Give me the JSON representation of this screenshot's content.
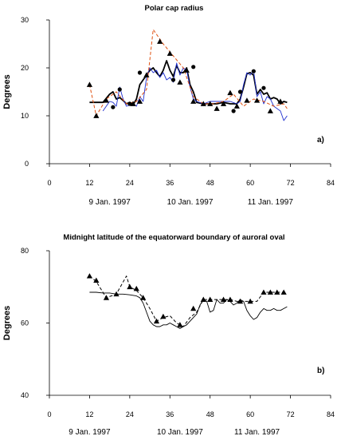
{
  "chart_data": [
    {
      "type": "line",
      "title": "Polar cap radius",
      "xlabel": "",
      "ylabel": "Degrees",
      "xlim": [
        0,
        84
      ],
      "ylim": [
        0,
        30
      ],
      "x_ticks": [
        "0",
        "12",
        "24",
        "36",
        "48",
        "60",
        "72",
        "84"
      ],
      "y_ticks": [
        "0",
        "10",
        "20",
        "30"
      ],
      "date_labels": [
        {
          "text": "9 Jan. 1997",
          "x": 18
        },
        {
          "text": "10 Jan. 1997",
          "x": 42
        },
        {
          "text": "11 Jan. 1997",
          "x": 66
        }
      ],
      "panel_label": "a)",
      "grid": false,
      "series": [
        {
          "style": "solid-thick",
          "color": "#000000",
          "x": [
            12,
            16,
            18,
            19,
            20,
            21,
            22,
            23,
            24,
            25,
            26,
            27,
            28,
            29,
            30,
            31,
            32,
            33,
            34,
            35,
            36,
            37,
            38,
            39,
            40,
            41,
            42,
            43,
            44,
            46,
            48,
            50,
            52,
            54,
            56,
            57,
            58,
            59,
            60,
            61,
            62,
            63,
            64,
            65,
            66,
            67,
            68,
            69,
            70,
            71
          ],
          "y": [
            12.8,
            12.8,
            14.5,
            15.0,
            13.5,
            13.8,
            13.2,
            12.5,
            12.8,
            12.3,
            13.5,
            16.5,
            17.5,
            18.5,
            19.5,
            20.0,
            19.0,
            18.2,
            19.5,
            21.5,
            19.5,
            18.2,
            20.5,
            19.0,
            19.0,
            20.0,
            16.5,
            15.0,
            12.8,
            12.5,
            12.5,
            12.5,
            12.8,
            12.5,
            12.5,
            13.5,
            16.0,
            18.8,
            19.0,
            18.5,
            14.5,
            15.5,
            14.5,
            14.8,
            13.5,
            13.8,
            13.5,
            12.5,
            13.0,
            12.8
          ]
        },
        {
          "style": "solid-thin",
          "color": "#1f2fcf",
          "x": [
            16,
            18,
            19,
            20,
            21,
            22,
            23,
            24,
            25,
            26,
            27,
            28,
            29,
            30,
            31,
            32,
            33,
            34,
            35,
            36,
            37,
            38,
            39,
            40,
            41,
            42,
            43,
            44,
            46,
            48,
            50,
            52,
            54,
            56,
            57,
            58,
            59,
            60,
            61,
            62,
            63,
            64,
            65,
            66,
            67,
            68,
            69,
            70,
            71
          ],
          "y": [
            11.0,
            13.0,
            12.8,
            12.0,
            16.0,
            13.5,
            12.0,
            12.2,
            12.5,
            12.0,
            14.0,
            13.0,
            18.0,
            20.0,
            19.0,
            19.5,
            18.0,
            19.0,
            17.5,
            18.0,
            17.0,
            21.0,
            18.5,
            20.0,
            19.5,
            16.0,
            13.5,
            13.0,
            12.5,
            13.0,
            13.0,
            13.0,
            13.0,
            12.5,
            13.0,
            16.5,
            19.0,
            18.5,
            19.5,
            14.0,
            15.0,
            12.5,
            14.0,
            13.5,
            12.0,
            11.5,
            11.0,
            9.0,
            10.0
          ]
        },
        {
          "style": "dashed",
          "color": "#e05010",
          "x": [
            12,
            14,
            17,
            20,
            23,
            26,
            29,
            31,
            34,
            37,
            40,
            43,
            46,
            49,
            52,
            55,
            58,
            61,
            64,
            67,
            70,
            71
          ],
          "y": [
            16.5,
            10.0,
            13.5,
            15.0,
            12.5,
            13.0,
            15.5,
            28.0,
            25.0,
            22.5,
            20.0,
            14.0,
            12.5,
            12.5,
            13.0,
            14.5,
            12.0,
            13.5,
            13.0,
            12.0,
            12.5,
            11.5
          ]
        }
      ],
      "markers": [
        {
          "shape": "triangle",
          "x": [
            12,
            14,
            17,
            25,
            27,
            29,
            33,
            36,
            39,
            41,
            43,
            46,
            48,
            50,
            52,
            54,
            56,
            59,
            62,
            66,
            69
          ],
          "y": [
            16.5,
            10.0,
            13.2,
            12.5,
            13.0,
            18.5,
            25.5,
            23.0,
            17.0,
            19.5,
            13.0,
            12.5,
            12.5,
            11.5,
            12.5,
            14.8,
            12.0,
            13.2,
            13.2,
            11.0,
            13.0
          ]
        },
        {
          "shape": "circle",
          "x": [
            19,
            21,
            24,
            27,
            37,
            43,
            55,
            57,
            61,
            64
          ],
          "y": [
            11.8,
            15.5,
            12.5,
            19.0,
            17.5,
            20.2,
            11.0,
            15.0,
            19.3,
            15.8
          ]
        }
      ]
    },
    {
      "type": "line",
      "title": "Midnight latitude of the equatorward boundary of auroral oval",
      "xlabel": "",
      "ylabel": "Degrees",
      "xlim": [
        0,
        84
      ],
      "ylim": [
        40,
        80
      ],
      "x_ticks": [
        "0",
        "12",
        "24",
        "36",
        "48",
        "60",
        "72",
        "84"
      ],
      "y_ticks": [
        "40",
        "60",
        "80"
      ],
      "date_labels": [
        {
          "text": "9 Jan. 1997",
          "x": 12
        },
        {
          "text": "10 Jan. 1997",
          "x": 39
        },
        {
          "text": "11 Jan. 1997",
          "x": 62
        }
      ],
      "panel_label": "b)",
      "grid": false,
      "series": [
        {
          "style": "solid",
          "color": "#000000",
          "x": [
            12,
            14,
            16,
            18,
            20,
            22,
            24,
            26,
            27,
            28,
            29,
            30,
            31,
            32,
            33,
            34,
            35,
            36,
            37,
            38,
            39,
            40,
            41,
            42,
            43,
            44,
            45,
            46,
            47,
            48,
            49,
            50,
            51,
            52,
            53,
            54,
            55,
            56,
            57,
            58,
            59,
            60,
            61,
            62,
            63,
            64,
            65,
            66,
            67,
            68,
            69,
            70,
            71
          ],
          "y": [
            68.5,
            68.5,
            68.3,
            68.3,
            68.0,
            68.0,
            67.8,
            67.5,
            67.0,
            65.5,
            63.0,
            60.5,
            59.5,
            59.0,
            59.0,
            59.5,
            59.5,
            60.0,
            59.5,
            59.0,
            58.5,
            59.0,
            59.5,
            60.5,
            61.5,
            62.5,
            65.0,
            66.5,
            66.0,
            63.0,
            63.5,
            66.5,
            65.5,
            65.5,
            66.5,
            66.0,
            65.0,
            65.5,
            66.5,
            66.0,
            63.5,
            62.0,
            61.0,
            61.5,
            63.0,
            64.0,
            63.5,
            63.5,
            64.0,
            63.5,
            63.5,
            64.0,
            64.5
          ]
        },
        {
          "style": "dashed",
          "color": "#000000",
          "x": [
            12,
            14,
            17,
            20,
            23,
            24,
            26,
            28,
            30,
            32,
            34,
            36,
            38,
            40,
            42,
            44,
            46,
            48,
            50,
            52,
            54,
            56,
            58,
            60,
            62,
            64,
            66,
            68,
            70,
            71
          ],
          "y": [
            73.0,
            71.5,
            67.0,
            68.0,
            73.0,
            70.0,
            69.0,
            67.0,
            64.0,
            60.5,
            61.5,
            62.0,
            60.0,
            59.0,
            61.5,
            63.0,
            66.5,
            66.5,
            66.5,
            66.5,
            66.5,
            66.0,
            66.0,
            66.0,
            66.0,
            68.5,
            68.5,
            68.5,
            68.5,
            68.5
          ]
        }
      ],
      "markers": [
        {
          "shape": "triangle",
          "x": [
            12,
            14,
            17,
            20,
            24,
            26,
            28,
            32,
            34,
            39,
            43,
            46,
            48,
            52,
            54,
            57,
            60,
            64,
            66,
            68,
            70
          ],
          "y": [
            73.0,
            71.8,
            67.0,
            68.0,
            70.0,
            69.5,
            67.0,
            60.5,
            61.8,
            59.5,
            64.0,
            66.5,
            66.5,
            66.5,
            66.5,
            66.0,
            66.0,
            68.5,
            68.5,
            68.5,
            68.5
          ]
        }
      ]
    }
  ]
}
